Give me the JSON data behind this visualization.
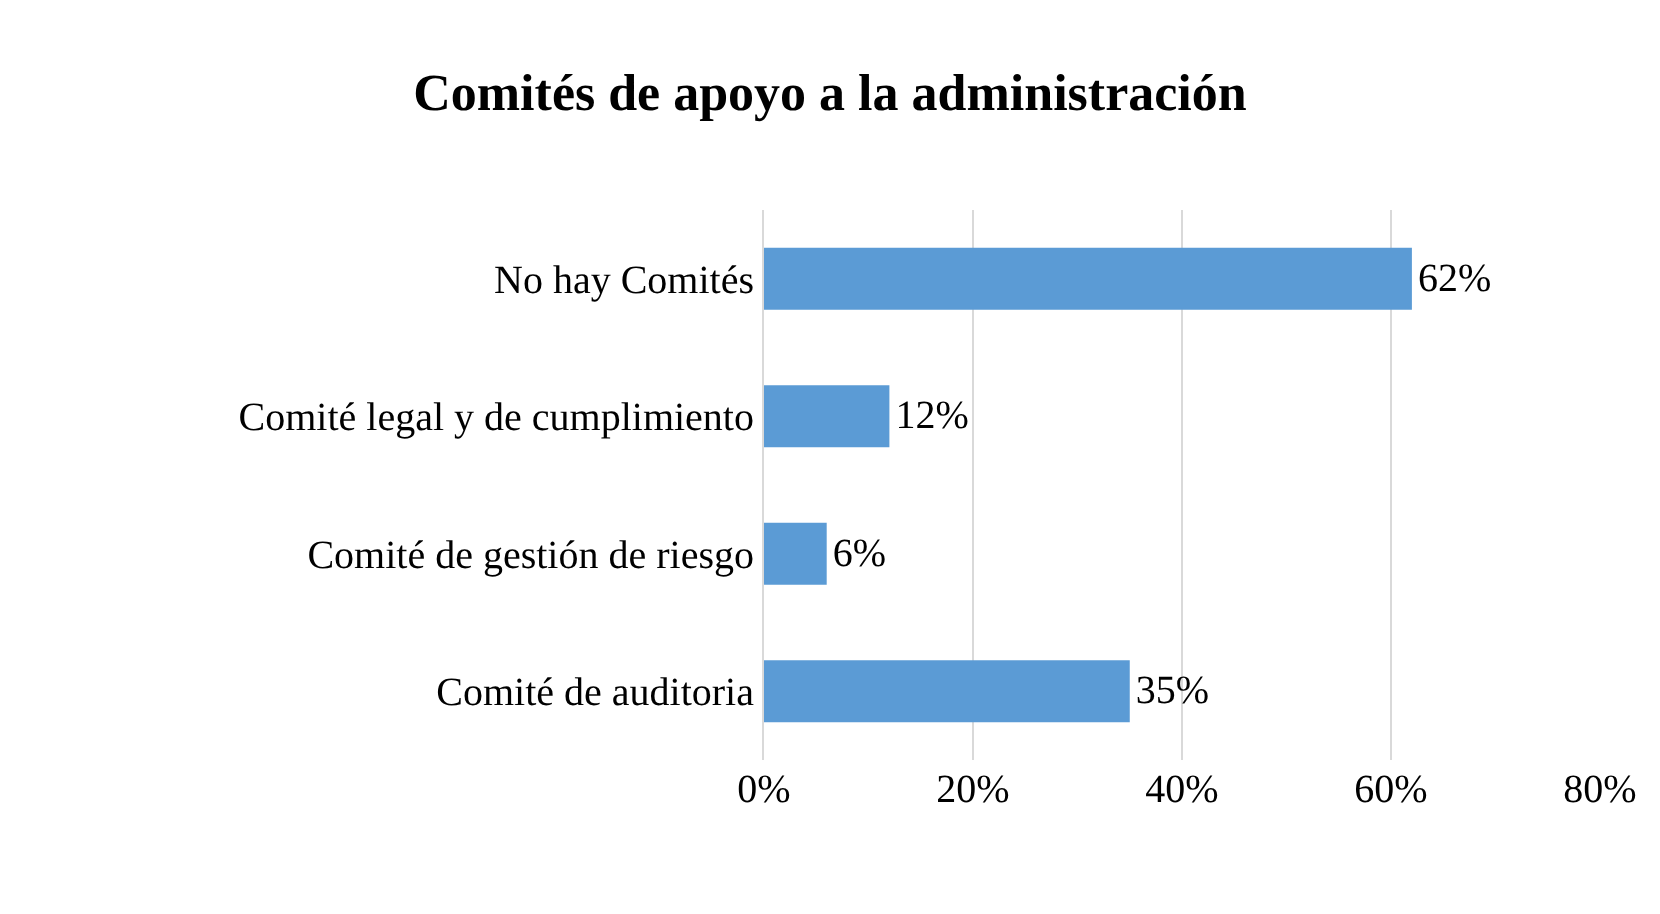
{
  "chart_data": {
    "type": "bar",
    "orientation": "horizontal",
    "title": "Comités de apoyo a la administración",
    "categories": [
      "No hay Comités",
      "Comité legal y de cumplimiento",
      "Comité de gestión de riesgo",
      "Comité de auditoria"
    ],
    "values": [
      62,
      12,
      6,
      35
    ],
    "value_labels": [
      "62%",
      "12%",
      "6%",
      "35%"
    ],
    "color": "#5b9bd5",
    "xlim": [
      0,
      80
    ],
    "xticks": [
      {
        "value": 0,
        "label": "0%"
      },
      {
        "value": 20,
        "label": "20%"
      },
      {
        "value": 40,
        "label": "40%"
      },
      {
        "value": 60,
        "label": "60%"
      },
      {
        "value": 80,
        "label": "80%"
      }
    ],
    "grid": "x",
    "legend": false
  }
}
